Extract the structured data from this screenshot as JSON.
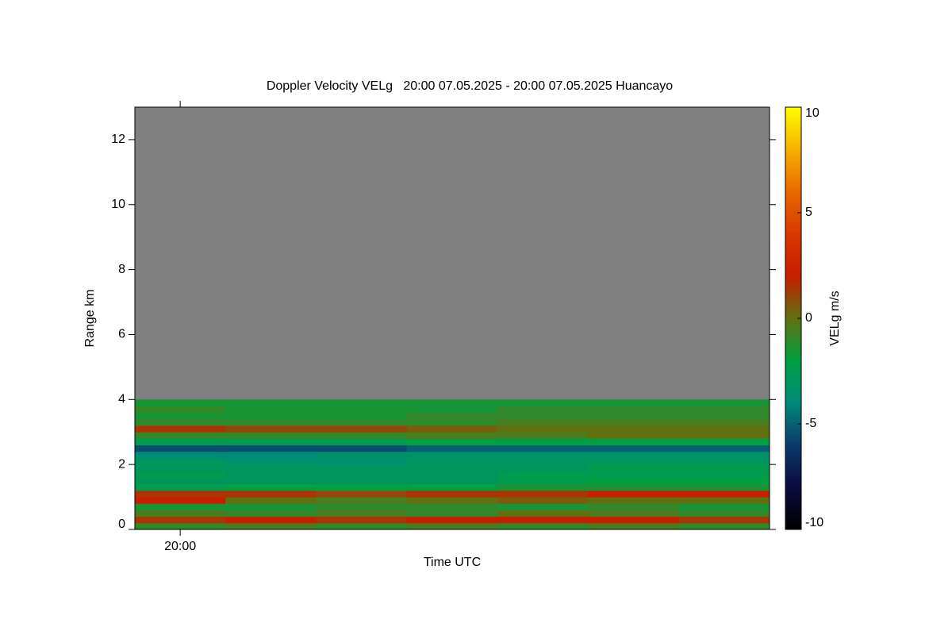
{
  "chart_data": {
    "type": "heatmap",
    "title": "Doppler Velocity VELg   20:00 07.05.2025 - 20:00 07.05.2025 Huancayo",
    "x_label": "Time UTC",
    "y_label": "Range km",
    "colorbar_label": "VELg m/s",
    "x": [
      1200,
      1201,
      1202,
      1203,
      1204,
      1205,
      1206
    ],
    "xlim": [
      1199.5,
      1206.5
    ],
    "xticks": [
      {
        "value": 1200,
        "label": "20:00"
      }
    ],
    "y_edges": [
      0,
      0.2,
      0.4,
      0.6,
      0.8,
      1.0,
      1.2,
      1.4,
      1.6,
      1.8,
      2.0,
      2.2,
      2.4,
      2.6,
      2.8,
      3.0,
      3.2,
      3.4,
      3.6,
      3.8,
      4.0
    ],
    "ylim": [
      0,
      13
    ],
    "yticks": [
      0,
      2,
      4,
      6,
      8,
      10,
      12
    ],
    "zlim": [
      -10,
      10
    ],
    "zticks": [
      -10,
      -5,
      0,
      5,
      10
    ],
    "nodata_color": "#808080",
    "colorscale": [
      "#000000",
      "#0a0a40",
      "#0a3a6a",
      "#008a7a",
      "#00a040",
      "#607010",
      "#c81e00",
      "#d83800",
      "#e86a00",
      "#f8b000",
      "#ffff00"
    ],
    "z": [
      [
        -1,
        -0.5,
        -1,
        -0.5,
        -1,
        -0.5,
        -1
      ],
      [
        1.5,
        2,
        1.5,
        2,
        2,
        2,
        1.5
      ],
      [
        -0.5,
        -1,
        -0.5,
        -1,
        0,
        -0.5,
        -1
      ],
      [
        -1.5,
        -1.5,
        -1,
        -1,
        -1.5,
        -1,
        -1.5
      ],
      [
        2,
        0,
        -0.5,
        0,
        0.5,
        0,
        0
      ],
      [
        1.5,
        1.5,
        1,
        1.5,
        1.5,
        2,
        2
      ],
      [
        -2.5,
        -2,
        -2,
        -2,
        -1.5,
        -1.5,
        -1.5
      ],
      [
        -3,
        -3,
        -3,
        -3,
        -2.5,
        -2,
        -2
      ],
      [
        -2.5,
        -3,
        -3,
        -3,
        -2.5,
        -2.5,
        -2.5
      ],
      [
        -3,
        -3,
        -3,
        -3,
        -3,
        -2.5,
        -2.5
      ],
      [
        -3,
        -3.5,
        -3.5,
        -3,
        -3,
        -3,
        -3
      ],
      [
        -4,
        -4,
        -3.5,
        -3.5,
        -3.5,
        -3.5,
        -3.5
      ],
      [
        -5.5,
        -5.5,
        -5.5,
        -5,
        -5,
        -5,
        -5
      ],
      [
        -2.5,
        -2.5,
        -2.5,
        -2,
        -2,
        -2,
        -2
      ],
      [
        -1,
        -1,
        -1,
        -0.5,
        -0.5,
        0,
        0
      ],
      [
        1.5,
        1,
        1,
        0.5,
        0,
        0,
        0
      ],
      [
        -1,
        -1,
        -1,
        -1,
        -0.5,
        -0.5,
        -0.5
      ],
      [
        -1.5,
        -1.5,
        -1.5,
        -1,
        -1,
        -1,
        -1
      ],
      [
        -1,
        -1.5,
        -1.5,
        -1.5,
        -1,
        -1,
        -1
      ],
      [
        -1.5,
        -1.5,
        -1.5,
        -1.5,
        -1.5,
        -1.5,
        -1.5
      ]
    ]
  }
}
